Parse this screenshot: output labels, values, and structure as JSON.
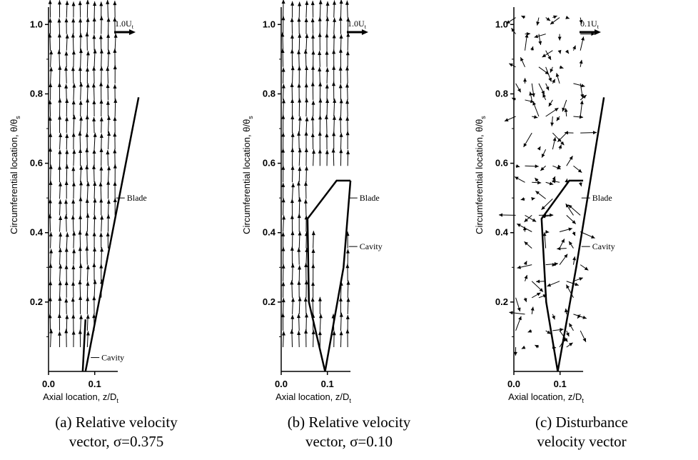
{
  "chart_data": [
    {
      "type": "vector-field",
      "panel_caption_line1": "(a) Relative velocity",
      "panel_caption_line2": "vector, σ=0.375",
      "xlabel": "Axial location, z/D",
      "xlabel_sub": "t",
      "ylabel": "Circumferential location, θ/θ",
      "ylabel_sub": "s",
      "xlim": [
        0.0,
        0.17
      ],
      "ylim": [
        0.0,
        1.05
      ],
      "x_ticks": [
        "0.0",
        "0.1"
      ],
      "y_ticks": [
        "0.2",
        "0.4",
        "0.6",
        "0.8",
        "1.0"
      ],
      "reference_vector_label": "1.0U",
      "reference_vector_sub": "t",
      "reference_magnitude": 1.0,
      "field": "relative",
      "blade_line": [
        [
          0.08,
          0.0
        ],
        [
          0.195,
          0.79
        ]
      ],
      "cavity_line": [
        [
          0.08,
          0.15
        ],
        [
          0.074,
          0.0
        ]
      ],
      "annotations": [
        {
          "text": "Blade",
          "x": 0.165,
          "y": 0.5
        },
        {
          "text": "Cavity",
          "x": 0.11,
          "y": 0.04
        }
      ]
    },
    {
      "type": "vector-field",
      "panel_caption_line1": "(b) Relative velocity",
      "panel_caption_line2": "vector, σ=0.10",
      "xlabel": "Axial location, z/D",
      "xlabel_sub": "t",
      "ylabel": "Circumferential location, θ/θ",
      "ylabel_sub": "s",
      "xlim": [
        0.0,
        0.17
      ],
      "ylim": [
        0.0,
        1.05
      ],
      "x_ticks": [
        "0.0",
        "0.1"
      ],
      "y_ticks": [
        "0.2",
        "0.4",
        "0.6",
        "0.8",
        "1.0"
      ],
      "reference_vector_label": "1.0U",
      "reference_vector_sub": "t",
      "reference_magnitude": 1.0,
      "field": "relative",
      "blade_line": [
        [
          0.095,
          0.0
        ],
        [
          0.135,
          0.3
        ],
        [
          0.15,
          0.55
        ]
      ],
      "cavity_line": [
        [
          0.095,
          0.0
        ],
        [
          0.06,
          0.2
        ],
        [
          0.057,
          0.44
        ],
        [
          0.12,
          0.55
        ],
        [
          0.15,
          0.55
        ]
      ],
      "annotations": [
        {
          "text": "Blade",
          "x": 0.165,
          "y": 0.5
        },
        {
          "text": "Cavity",
          "x": 0.165,
          "y": 0.36
        }
      ]
    },
    {
      "type": "vector-field",
      "panel_caption_line1": "(c) Disturbance",
      "panel_caption_line2": "velocity vector",
      "xlabel": "Axial location, z/D",
      "xlabel_sub": "t",
      "ylabel": "Circumferential location, θ/θ",
      "ylabel_sub": "s",
      "xlim": [
        0.0,
        0.17
      ],
      "ylim": [
        0.0,
        1.05
      ],
      "x_ticks": [
        "0.0",
        "0.1"
      ],
      "y_ticks": [
        "0.2",
        "0.4",
        "0.6",
        "0.8",
        "1.0"
      ],
      "reference_vector_label": "0.1U",
      "reference_vector_sub": "t",
      "reference_magnitude": 0.1,
      "field": "disturbance",
      "blade_line": [
        [
          0.095,
          0.0
        ],
        [
          0.135,
          0.3
        ],
        [
          0.195,
          0.79
        ]
      ],
      "cavity_line": [
        [
          0.095,
          0.0
        ],
        [
          0.07,
          0.2
        ],
        [
          0.06,
          0.44
        ],
        [
          0.12,
          0.55
        ],
        [
          0.15,
          0.55
        ]
      ],
      "annotations": [
        {
          "text": "Blade",
          "x": 0.165,
          "y": 0.5
        },
        {
          "text": "Cavity",
          "x": 0.165,
          "y": 0.36
        }
      ]
    }
  ]
}
